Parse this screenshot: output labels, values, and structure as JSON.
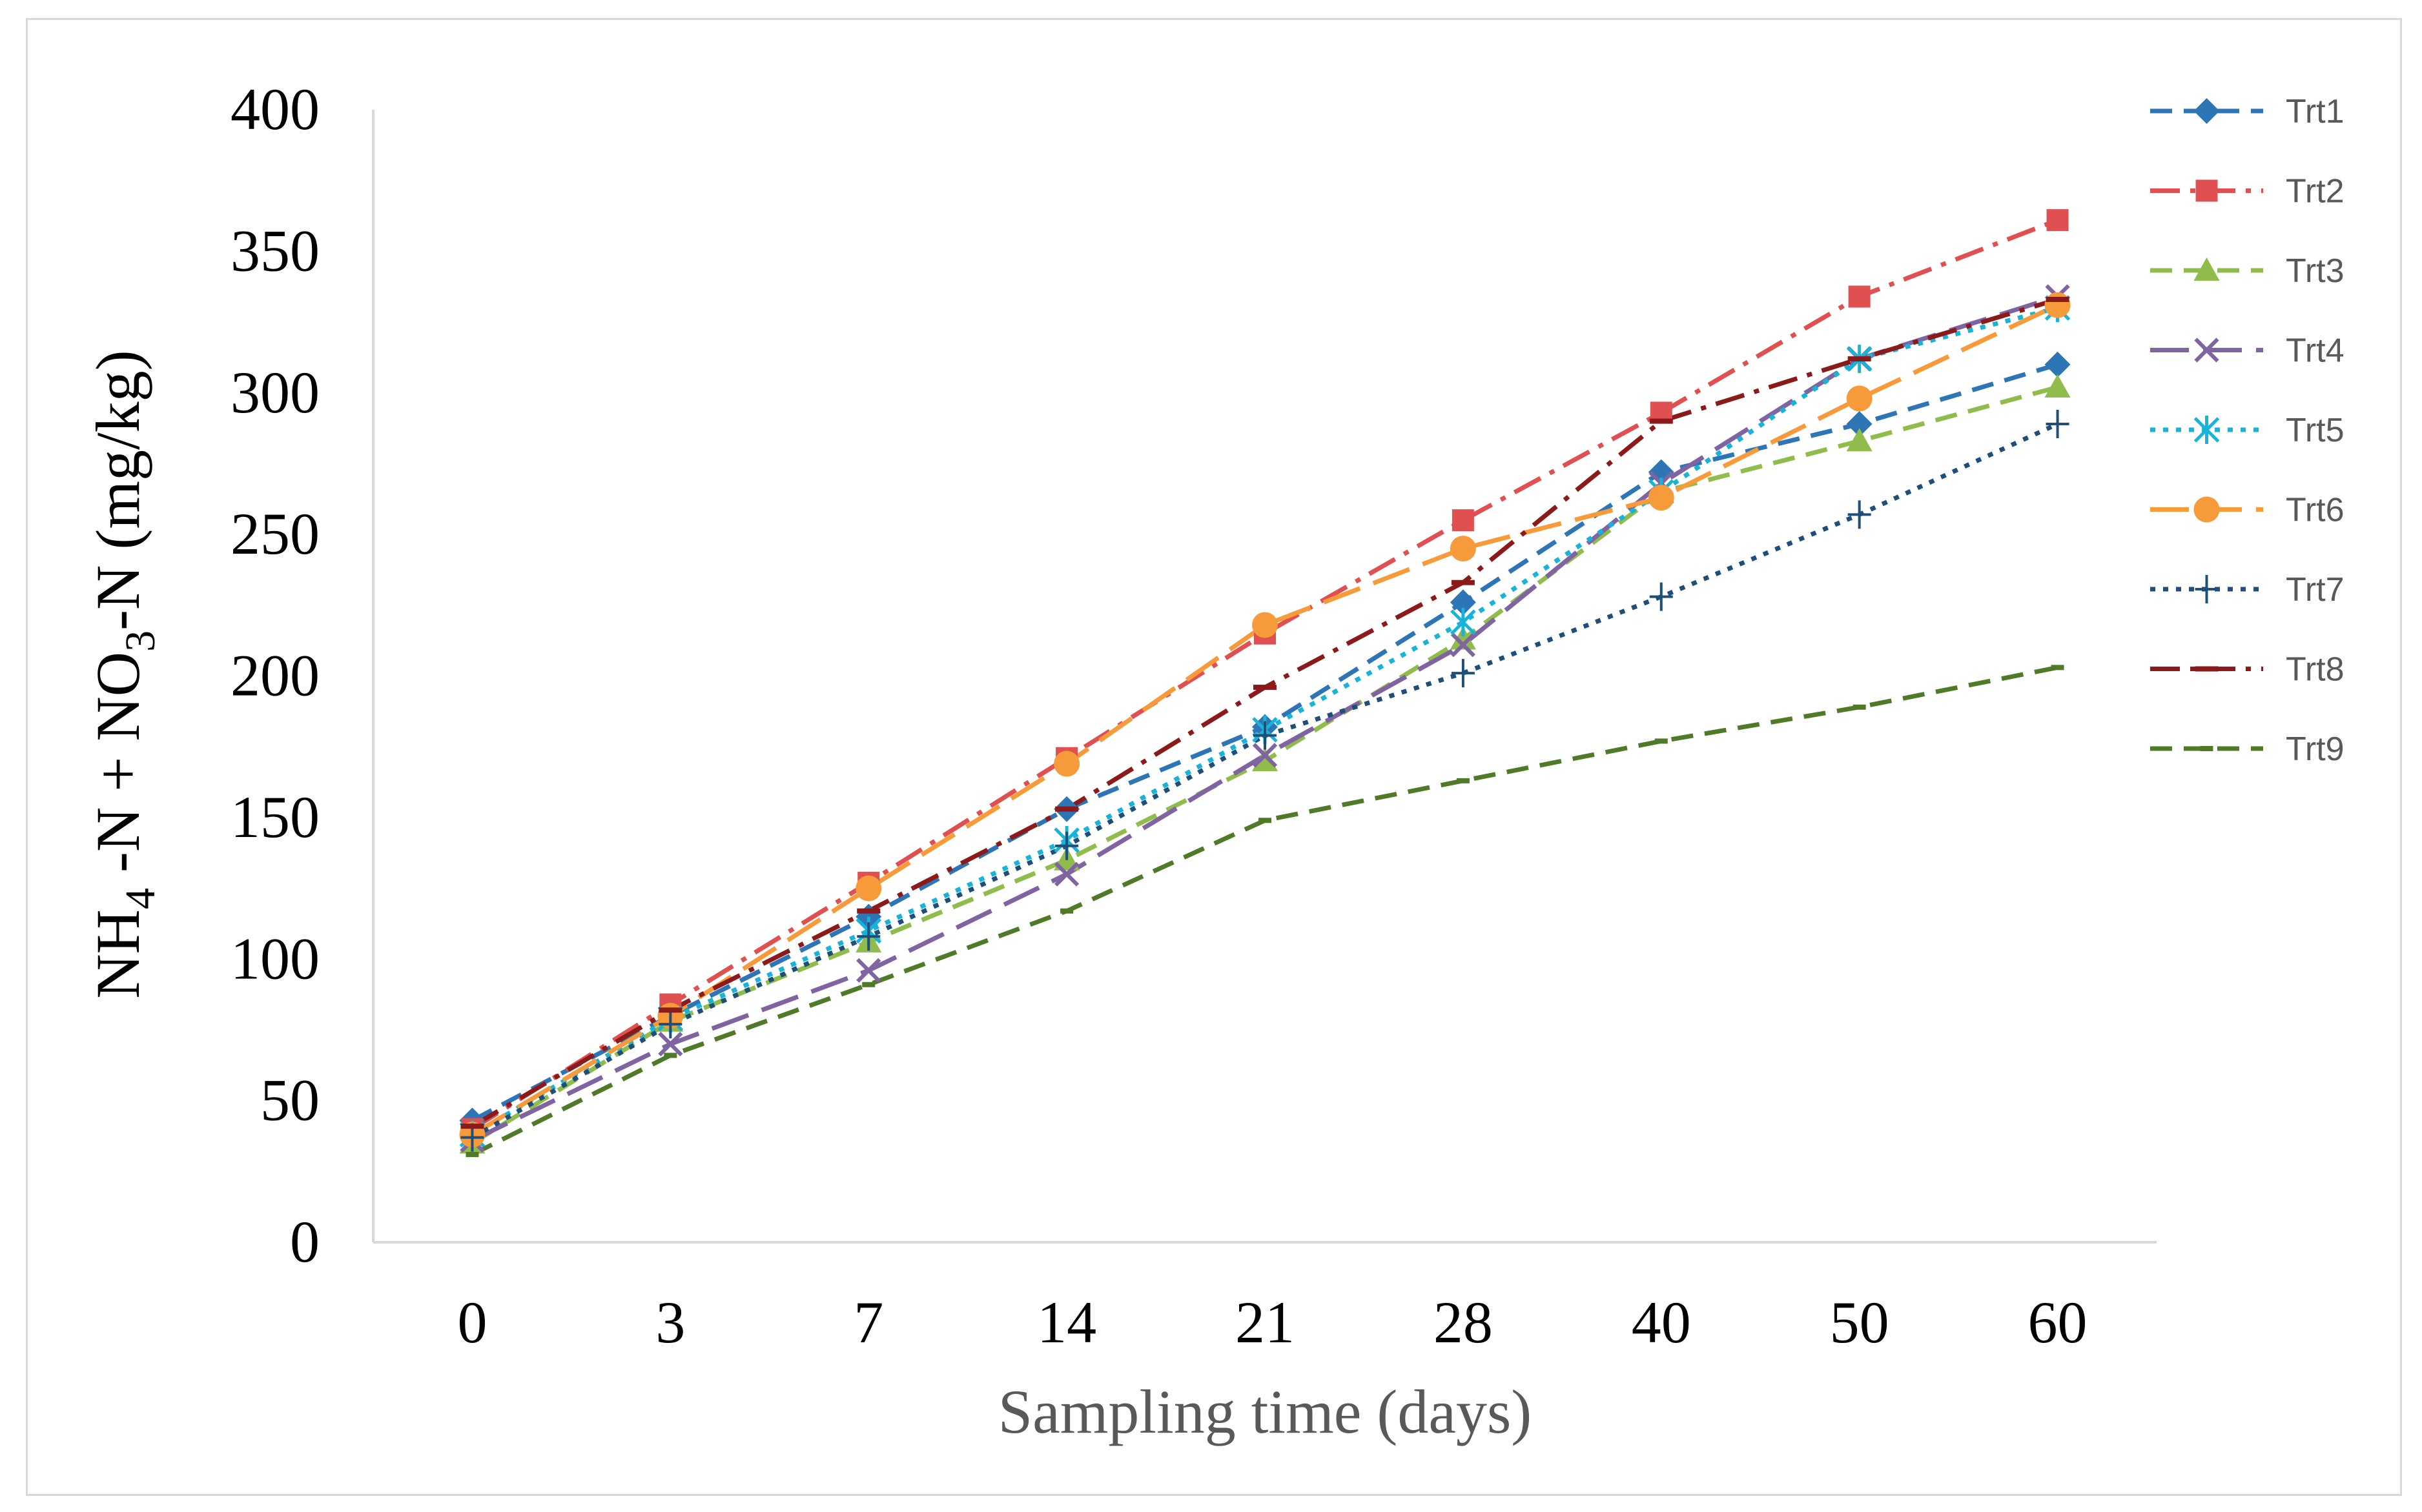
{
  "chart_data": {
    "type": "line",
    "title": "",
    "xlabel": "Sampling time (days)",
    "ylabel": {
      "parts": [
        "NH",
        "4",
        " -N + NO",
        "3",
        "-N (mg/kg)"
      ]
    },
    "categories": [
      "0",
      "3",
      "7",
      "14",
      "21",
      "28",
      "40",
      "50",
      "60"
    ],
    "yticks": [
      "0",
      "50",
      "100",
      "150",
      "200",
      "250",
      "300",
      "350",
      "400"
    ],
    "ylim": [
      0,
      400
    ],
    "grid": false,
    "legend_position": "right",
    "series": [
      {
        "name": "Trt1",
        "color": "#2e75b6",
        "dash": "dash",
        "marker": "diamond",
        "values": [
          43,
          80,
          115,
          153,
          182,
          226,
          272,
          289,
          310
        ]
      },
      {
        "name": "Trt2",
        "color": "#e05050",
        "dash": "dashdot",
        "marker": "square",
        "values": [
          40,
          84,
          127,
          171,
          215,
          255,
          293,
          334,
          361
        ]
      },
      {
        "name": "Trt3",
        "color": "#8fbc4a",
        "dash": "dash",
        "marker": "triangle",
        "values": [
          35,
          78,
          106,
          135,
          170,
          213,
          265,
          283,
          302
        ]
      },
      {
        "name": "Trt4",
        "color": "#8064a2",
        "dash": "longdash",
        "marker": "x",
        "values": [
          36,
          70,
          96,
          130,
          172,
          211,
          268,
          312,
          334
        ]
      },
      {
        "name": "Trt5",
        "color": "#17b3d9",
        "dash": "dot",
        "marker": "asterisk",
        "values": [
          38,
          79,
          110,
          142,
          181,
          219,
          265,
          312,
          330
        ]
      },
      {
        "name": "Trt6",
        "color": "#f79a3a",
        "dash": "longdash",
        "marker": "circle",
        "values": [
          38,
          80,
          125,
          169,
          218,
          245,
          263,
          298,
          331
        ]
      },
      {
        "name": "Trt7",
        "color": "#1f4e79",
        "dash": "dot",
        "marker": "plus",
        "values": [
          37,
          77,
          108,
          140,
          179,
          201,
          228,
          257,
          289
        ]
      },
      {
        "name": "Trt8",
        "color": "#8b1a1a",
        "dash": "dashdot",
        "marker": "dash",
        "values": [
          41,
          82,
          117,
          153,
          196,
          233,
          290,
          312,
          333
        ]
      },
      {
        "name": "Trt9",
        "color": "#4f7a28",
        "dash": "dash",
        "marker": "small-dash",
        "values": [
          31,
          66,
          91,
          117,
          149,
          163,
          177,
          189,
          203
        ]
      }
    ]
  }
}
